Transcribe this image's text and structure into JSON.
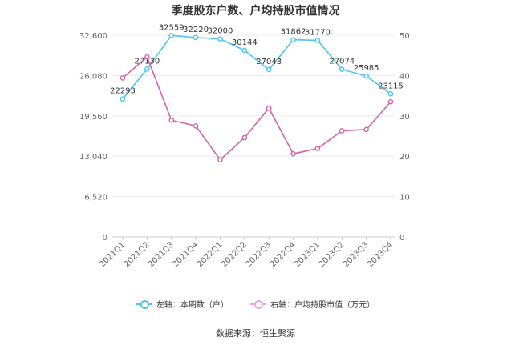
{
  "chart_data": {
    "type": "line",
    "title": "季度股东户数、户均持股市值情况",
    "categories": [
      "2021Q1",
      "2021Q2",
      "2021Q3",
      "2021Q4",
      "2022Q1",
      "2022Q2",
      "2022Q3",
      "2022Q4",
      "2023Q1",
      "2023Q2",
      "2023Q3",
      "2023Q4"
    ],
    "left_axis": {
      "ticks": [
        "0",
        "6,520",
        "13,040",
        "19,560",
        "26,080",
        "32,600"
      ],
      "ylim": [
        0,
        32600
      ]
    },
    "right_axis": {
      "ticks": [
        "0",
        "10",
        "20",
        "30",
        "40",
        "50"
      ],
      "ylim": [
        0,
        50
      ]
    },
    "series": [
      {
        "name": "左轴：本期数（户）",
        "axis": "left",
        "color": "#4fc3f0",
        "values": [
          22293,
          27130,
          32559,
          32220,
          32000,
          30144,
          27043,
          31862,
          31770,
          27074,
          25985,
          23115
        ],
        "labels": [
          "22293",
          "27130",
          "32559",
          "32220",
          "32000",
          "30144",
          "27043",
          "31862",
          "31770",
          "27074",
          "25985",
          "23115"
        ]
      },
      {
        "name": "右轴：户均持股市值（万元）",
        "axis": "right",
        "color": "#d463a8",
        "values": [
          39.4,
          44.6,
          28.9,
          27.5,
          19.1,
          24.6,
          31.9,
          20.6,
          21.9,
          26.3,
          26.6,
          33.5
        ]
      }
    ],
    "grid": true,
    "legend_position": "bottom"
  },
  "source": "数据来源：恒生聚源"
}
